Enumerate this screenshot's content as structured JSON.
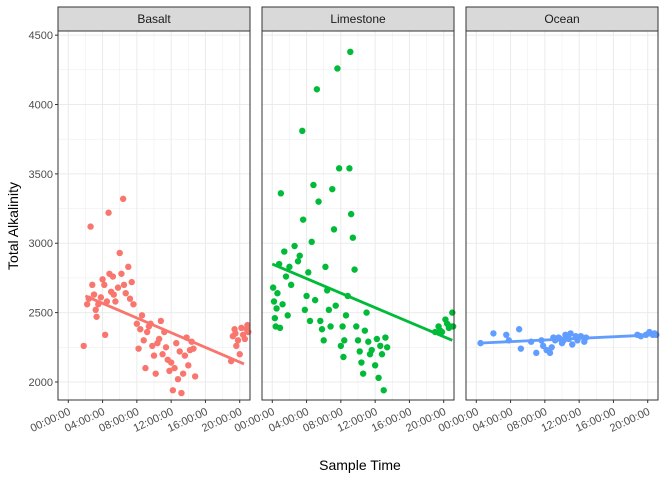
{
  "chart_data": {
    "type": "scatter",
    "xlabel": "Sample Time",
    "ylabel": "Total Alkalinity",
    "xlim": [
      -1.2,
      21.2
    ],
    "ylim": [
      1870,
      4530
    ],
    "x_ticks": [
      0,
      4,
      8,
      12,
      16,
      20
    ],
    "x_tick_labels": [
      "00:00:00",
      "04:00:00",
      "08:00:00",
      "12:00:00",
      "16:00:00",
      "20:00:00"
    ],
    "y_ticks": [
      2000,
      2500,
      3000,
      3500,
      4000,
      4500
    ],
    "y_tick_labels": [
      "2000",
      "2500",
      "3000",
      "3500",
      "4000",
      "4500"
    ],
    "grid": true,
    "legend": "none",
    "panels": [
      {
        "name": "Basalt",
        "color": "#F8766D",
        "trend": {
          "x": [
            2.0,
            20.5
          ],
          "y": [
            2620,
            2130
          ]
        },
        "points": [
          [
            1.8,
            2260
          ],
          [
            2.2,
            2560
          ],
          [
            2.4,
            2600
          ],
          [
            2.6,
            3120
          ],
          [
            2.8,
            2700
          ],
          [
            3.0,
            2630
          ],
          [
            3.2,
            2520
          ],
          [
            3.3,
            2470
          ],
          [
            3.5,
            2560
          ],
          [
            3.8,
            2610
          ],
          [
            4.0,
            2740
          ],
          [
            4.2,
            2700
          ],
          [
            4.3,
            2340
          ],
          [
            4.5,
            2580
          ],
          [
            4.7,
            3220
          ],
          [
            4.8,
            2780
          ],
          [
            5.0,
            2650
          ],
          [
            5.2,
            2760
          ],
          [
            5.3,
            2630
          ],
          [
            5.5,
            2580
          ],
          [
            5.8,
            2680
          ],
          [
            6.0,
            2930
          ],
          [
            6.2,
            2780
          ],
          [
            6.4,
            3320
          ],
          [
            6.5,
            2700
          ],
          [
            6.7,
            2640
          ],
          [
            7.0,
            2830
          ],
          [
            7.2,
            2600
          ],
          [
            7.4,
            2720
          ],
          [
            7.6,
            2560
          ],
          [
            8.0,
            2420
          ],
          [
            8.2,
            2240
          ],
          [
            8.4,
            2380
          ],
          [
            8.6,
            2480
          ],
          [
            8.8,
            2300
          ],
          [
            9.0,
            2100
          ],
          [
            9.2,
            2360
          ],
          [
            9.4,
            2400
          ],
          [
            9.6,
            2420
          ],
          [
            9.8,
            2260
          ],
          [
            10.0,
            2190
          ],
          [
            10.2,
            2060
          ],
          [
            10.4,
            2280
          ],
          [
            10.6,
            2310
          ],
          [
            10.8,
            2440
          ],
          [
            11.0,
            2200
          ],
          [
            11.2,
            2360
          ],
          [
            11.4,
            2250
          ],
          [
            11.6,
            2160
          ],
          [
            11.8,
            2080
          ],
          [
            12.0,
            2140
          ],
          [
            12.2,
            1940
          ],
          [
            12.4,
            2100
          ],
          [
            12.6,
            2280
          ],
          [
            12.8,
            2020
          ],
          [
            13.0,
            2220
          ],
          [
            13.2,
            1920
          ],
          [
            13.4,
            2060
          ],
          [
            13.6,
            2190
          ],
          [
            13.8,
            2320
          ],
          [
            14.0,
            2120
          ],
          [
            14.2,
            2230
          ],
          [
            14.4,
            2290
          ],
          [
            14.6,
            2240
          ],
          [
            14.8,
            2040
          ],
          [
            19.0,
            2150
          ],
          [
            19.2,
            2330
          ],
          [
            19.4,
            2380
          ],
          [
            19.6,
            2260
          ],
          [
            19.8,
            2300
          ],
          [
            20.0,
            2200
          ],
          [
            20.2,
            2390
          ],
          [
            20.4,
            2340
          ],
          [
            20.6,
            2310
          ],
          [
            20.8,
            2380
          ],
          [
            21.0,
            2360
          ],
          [
            20.9,
            2410
          ],
          [
            19.5,
            2350
          ]
        ]
      },
      {
        "name": "Limestone",
        "color": "#00BA38",
        "trend": {
          "x": [
            0.0,
            21.0
          ],
          "y": [
            2850,
            2300
          ]
        },
        "points": [
          [
            0.1,
            2680
          ],
          [
            0.2,
            2580
          ],
          [
            0.3,
            2460
          ],
          [
            0.4,
            2400
          ],
          [
            0.5,
            2530
          ],
          [
            0.6,
            2640
          ],
          [
            0.8,
            2850
          ],
          [
            0.9,
            2390
          ],
          [
            1.0,
            3360
          ],
          [
            1.2,
            2560
          ],
          [
            1.4,
            2940
          ],
          [
            1.6,
            2760
          ],
          [
            1.8,
            2480
          ],
          [
            2.0,
            2830
          ],
          [
            2.2,
            2700
          ],
          [
            2.6,
            2980
          ],
          [
            3.0,
            2870
          ],
          [
            3.2,
            2910
          ],
          [
            3.5,
            3810
          ],
          [
            3.6,
            3170
          ],
          [
            3.8,
            2520
          ],
          [
            4.0,
            2620
          ],
          [
            4.2,
            2790
          ],
          [
            4.4,
            2440
          ],
          [
            4.6,
            3010
          ],
          [
            4.8,
            3420
          ],
          [
            5.0,
            2590
          ],
          [
            5.2,
            4110
          ],
          [
            5.4,
            3300
          ],
          [
            5.6,
            2440
          ],
          [
            5.8,
            2380
          ],
          [
            6.0,
            2300
          ],
          [
            6.2,
            2830
          ],
          [
            6.4,
            2660
          ],
          [
            6.6,
            2520
          ],
          [
            6.8,
            2400
          ],
          [
            7.0,
            3390
          ],
          [
            7.2,
            3100
          ],
          [
            7.4,
            2550
          ],
          [
            7.6,
            4260
          ],
          [
            7.8,
            3540
          ],
          [
            8.0,
            2260
          ],
          [
            8.2,
            2400
          ],
          [
            8.4,
            2300
          ],
          [
            8.6,
            2480
          ],
          [
            8.8,
            2620
          ],
          [
            9.0,
            3540
          ],
          [
            9.2,
            3210
          ],
          [
            9.4,
            3040
          ],
          [
            9.6,
            2810
          ],
          [
            9.8,
            2400
          ],
          [
            10.0,
            2300
          ],
          [
            10.2,
            2220
          ],
          [
            10.4,
            2140
          ],
          [
            10.6,
            2060
          ],
          [
            10.8,
            2370
          ],
          [
            11.0,
            2500
          ],
          [
            11.2,
            2290
          ],
          [
            11.4,
            2200
          ],
          [
            11.6,
            2230
          ],
          [
            12.0,
            2120
          ],
          [
            12.2,
            2310
          ],
          [
            12.4,
            2030
          ],
          [
            12.6,
            2260
          ],
          [
            12.8,
            2200
          ],
          [
            13.0,
            1940
          ],
          [
            13.2,
            2320
          ],
          [
            13.4,
            2250
          ],
          [
            9.1,
            4380
          ],
          [
            8.3,
            2180
          ],
          [
            19.0,
            2360
          ],
          [
            19.4,
            2400
          ],
          [
            19.8,
            2360
          ],
          [
            20.2,
            2450
          ],
          [
            20.6,
            2390
          ],
          [
            20.8,
            2400
          ],
          [
            21.0,
            2500
          ],
          [
            21.1,
            2400
          ],
          [
            19.6,
            2370
          ],
          [
            20.4,
            2420
          ]
        ]
      },
      {
        "name": "Ocean",
        "color": "#619CFF",
        "trend": {
          "x": [
            0.3,
            20.8
          ],
          "y": [
            2280,
            2340
          ]
        },
        "points": [
          [
            0.5,
            2280
          ],
          [
            2.0,
            2350
          ],
          [
            3.5,
            2340
          ],
          [
            3.8,
            2300
          ],
          [
            5.0,
            2380
          ],
          [
            5.2,
            2240
          ],
          [
            6.4,
            2290
          ],
          [
            7.0,
            2210
          ],
          [
            7.6,
            2300
          ],
          [
            7.8,
            2260
          ],
          [
            8.2,
            2230
          ],
          [
            8.6,
            2210
          ],
          [
            8.8,
            2250
          ],
          [
            9.0,
            2320
          ],
          [
            9.2,
            2300
          ],
          [
            9.6,
            2320
          ],
          [
            9.8,
            2310
          ],
          [
            10.0,
            2280
          ],
          [
            10.2,
            2300
          ],
          [
            10.4,
            2340
          ],
          [
            10.8,
            2310
          ],
          [
            11.0,
            2350
          ],
          [
            11.2,
            2270
          ],
          [
            11.6,
            2330
          ],
          [
            11.8,
            2300
          ],
          [
            12.2,
            2330
          ],
          [
            12.6,
            2290
          ],
          [
            12.8,
            2320
          ],
          [
            18.8,
            2340
          ],
          [
            19.2,
            2330
          ],
          [
            19.8,
            2340
          ],
          [
            20.2,
            2360
          ],
          [
            20.6,
            2340
          ],
          [
            20.8,
            2350
          ],
          [
            21.0,
            2340
          ]
        ]
      }
    ]
  }
}
